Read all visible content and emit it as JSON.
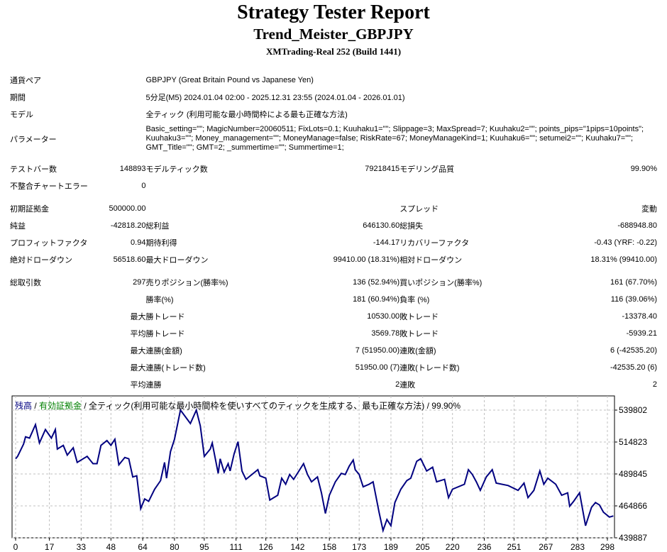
{
  "header": {
    "title": "Strategy Tester Report",
    "expert": "Trend_Meister_GBPJPY",
    "server": "XMTrading-Real 252 (Build 1441)"
  },
  "info": {
    "symbol_label": "通貨ペア",
    "symbol": "GBPJPY (Great Britain Pound vs Japanese Yen)",
    "period_label": "期間",
    "period": "5分足(M5) 2024.01.04 02:00 - 2025.12.31 23:55 (2024.01.04 - 2026.01.01)",
    "model_label": "モデル",
    "model": "全ティック (利用可能な最小時間枠による最も正確な方法)",
    "params_label": "パラメーター",
    "params": "Basic_setting=\"\"; MagicNumber=20060511; FixLots=0.1; Kuuhaku1=\"\"; Slippage=3; MaxSpread=7; Kuuhaku2=\"\"; points_pips=\"1pips=10points\"; Kuuhaku3=\"\"; Money_management=\"\"; MoneyManage=false; RiskRate=67; MoneyManageKind=1; Kuuhaku6=\"\"; setumei2=\"\"; Kuuhaku7=\"\"; GMT_Title=\"\"; GMT=2; _summertime=\"\"; Summertime=1;"
  },
  "rows": [
    [
      "テストバー数",
      "148893",
      "モデルティック数",
      "79218415",
      "モデリング品質",
      "99.90%"
    ],
    [
      "不整合チャートエラー",
      "0",
      "",
      "",
      "",
      ""
    ],
    [
      "初期証拠金",
      "500000.00",
      "",
      "",
      "スプレッド",
      "変動"
    ],
    [
      "純益",
      "-42818.20",
      "総利益",
      "646130.60",
      "総損失",
      "-688948.80"
    ],
    [
      "プロフィットファクタ",
      "0.94",
      "期待利得",
      "-144.17",
      "リカバリーファクタ",
      "-0.43 (YRF: -0.22)"
    ],
    [
      "絶対ドローダウン",
      "56518.60",
      "最大ドローダウン",
      "99410.00 (18.31%)",
      "相対ドローダウン",
      "18.31% (99410.00)"
    ],
    [
      "総取引数",
      "297",
      "売りポジション(勝率%)",
      "136 (52.94%)",
      "買いポジション(勝率%)",
      "161 (67.70%)"
    ],
    [
      "",
      "",
      "勝率(%)",
      "181 (60.94%)",
      "負率 (%)",
      "116 (39.06%)"
    ],
    [
      "",
      "最大",
      "勝トレード",
      "10530.00",
      "敗トレード",
      "-13378.40"
    ],
    [
      "",
      "平均",
      "勝トレード",
      "3569.78",
      "敗トレード",
      "-5939.21"
    ],
    [
      "",
      "最大",
      "連勝(金額)",
      "7 (51950.00)",
      "連敗(金額)",
      "6 (-42535.20)"
    ],
    [
      "",
      "最大",
      "連勝(トレード数)",
      "51950.00 (7)",
      "連敗(トレード数)",
      "-42535.20 (6)"
    ],
    [
      "",
      "平均",
      "連勝",
      "2",
      "連敗",
      "2"
    ]
  ],
  "chart_data": {
    "type": "line",
    "legend": {
      "balance": "残高",
      "sep1": " / ",
      "equity": "有効証拠金",
      "rest": " / 全ティック(利用可能な最小時間枠を使いすべてのティックを生成する、最も正確な方法) / 99.90%"
    },
    "colors": {
      "balance": "#000080",
      "equity": "#008000",
      "grid": "#c0c0c0"
    },
    "x_ticks": [
      0,
      17,
      33,
      48,
      64,
      80,
      95,
      111,
      126,
      142,
      158,
      173,
      189,
      205,
      220,
      236,
      251,
      267,
      283,
      298
    ],
    "y_ticks": [
      539802,
      514823,
      489845,
      464866,
      439887
    ],
    "xlim": [
      0,
      301
    ],
    "ylim": [
      439887,
      550900
    ],
    "x": [
      0,
      1,
      4,
      5,
      7,
      10,
      12,
      15,
      18,
      20,
      21,
      24,
      26,
      29,
      31,
      36,
      39,
      41,
      43,
      46,
      48,
      50,
      52,
      55,
      57,
      59,
      61,
      63,
      65,
      67,
      70,
      73,
      75,
      76,
      78,
      80,
      83,
      88,
      91,
      93,
      95,
      98,
      99,
      102,
      103,
      105,
      107,
      108,
      110,
      112,
      114,
      116,
      122,
      123,
      126,
      128,
      132,
      134,
      136,
      138,
      140,
      145,
      147,
      149,
      152,
      154,
      156,
      158,
      161,
      164,
      166,
      168,
      170,
      171,
      173,
      175,
      178,
      180,
      183,
      185,
      187,
      189,
      191,
      194,
      197,
      199,
      202,
      204,
      207,
      210,
      212,
      216,
      218,
      220,
      226,
      228,
      230,
      232,
      234,
      237,
      240,
      242,
      248,
      253,
      256,
      258,
      261,
      264,
      266,
      268,
      272,
      275,
      278,
      279,
      281,
      284,
      287,
      290,
      292,
      294,
      296,
      299,
      301
    ],
    "balance": [
      501700,
      503600,
      513200,
      518900,
      517900,
      528400,
      514100,
      524600,
      517900,
      524600,
      509300,
      512200,
      504600,
      510300,
      498900,
      503600,
      497900,
      497900,
      512200,
      516000,
      512200,
      517000,
      497000,
      502700,
      501700,
      487500,
      488400,
      462700,
      470300,
      468400,
      477900,
      484600,
      498900,
      486500,
      507400,
      517000,
      539800,
      529300,
      539800,
      527400,
      503600,
      509300,
      514100,
      490300,
      501700,
      491300,
      497900,
      492200,
      505500,
      515100,
      492200,
      485600,
      493200,
      488400,
      486500,
      469400,
      473200,
      486500,
      481800,
      489400,
      485600,
      497900,
      489400,
      483700,
      487500,
      475100,
      458900,
      473200,
      483700,
      490300,
      489400,
      496000,
      500800,
      493200,
      489400,
      479800,
      481800,
      483700,
      459900,
      445600,
      454200,
      449400,
      467500,
      477900,
      484600,
      486500,
      499800,
      501700,
      492200,
      495100,
      483700,
      485600,
      471300,
      477900,
      481800,
      493200,
      489400,
      483700,
      477000,
      487500,
      493200,
      482700,
      480800,
      477000,
      482700,
      471300,
      477000,
      492200,
      481800,
      486500,
      481800,
      473200,
      475100,
      464600,
      468400,
      475100,
      449400,
      463700,
      467500,
      465600,
      459900,
      456100,
      457000
    ]
  }
}
